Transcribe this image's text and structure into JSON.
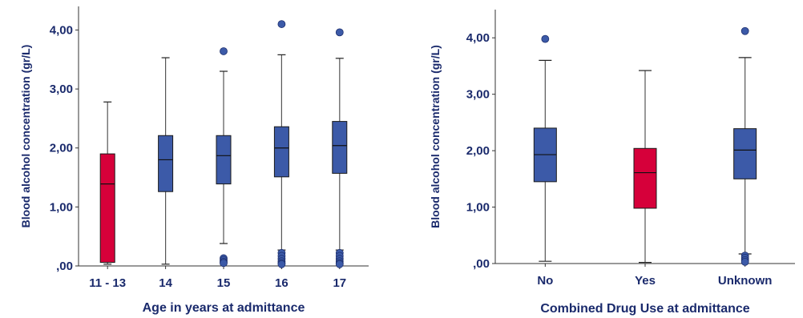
{
  "colors": {
    "default_box": "#3c5aa8",
    "highlight_box": "#d6003a",
    "outlier": "#3c5aa8",
    "axis": "#333333",
    "text": "#1a2a6c"
  },
  "chart_data": [
    {
      "type": "box",
      "title": "",
      "xlabel": "Age in years at admittance",
      "ylabel": "Blood alcohol concentration (gr/L)",
      "ylim": [
        0,
        4.4
      ],
      "yticks": [
        {
          "value": 0,
          "label": ",00"
        },
        {
          "value": 1,
          "label": "1,00"
        },
        {
          "value": 2,
          "label": "2,00"
        },
        {
          "value": 3,
          "label": "3,00"
        },
        {
          "value": 4,
          "label": "4,00"
        }
      ],
      "grid": false,
      "categories": [
        {
          "label": "11 - 13",
          "whisker_low": 0.03,
          "q1": 0.06,
          "median": 1.39,
          "q3": 1.9,
          "whisker_high": 2.78,
          "outliers": [],
          "highlight": true
        },
        {
          "label": "14",
          "whisker_low": 0.03,
          "q1": 1.26,
          "median": 1.8,
          "q3": 2.21,
          "whisker_high": 3.53,
          "outliers": [],
          "highlight": false
        },
        {
          "label": "15",
          "whisker_low": 0.38,
          "q1": 1.39,
          "median": 1.87,
          "q3": 2.21,
          "whisker_high": 3.3,
          "outliers": [
            3.64,
            0.13,
            0.1,
            0.07,
            0.05
          ],
          "highlight": false
        },
        {
          "label": "16",
          "whisker_low": 0.27,
          "q1": 1.51,
          "median": 2.0,
          "q3": 2.36,
          "whisker_high": 3.58,
          "outliers": [
            4.1,
            0.22,
            0.17,
            0.12,
            0.08,
            0.05,
            0.03
          ],
          "highlight": false
        },
        {
          "label": "17",
          "whisker_low": 0.27,
          "q1": 1.57,
          "median": 2.04,
          "q3": 2.45,
          "whisker_high": 3.52,
          "outliers": [
            3.96,
            0.22,
            0.17,
            0.12,
            0.08,
            0.05,
            0.03
          ],
          "highlight": false
        }
      ]
    },
    {
      "type": "box",
      "title": "",
      "xlabel": "Combined Drug Use at admittance",
      "ylabel": "Blood alcohol concentration (gr/L)",
      "ylim": [
        0,
        4.5
      ],
      "yticks": [
        {
          "value": 0,
          "label": ",00"
        },
        {
          "value": 1,
          "label": "1,00"
        },
        {
          "value": 2,
          "label": "2,00"
        },
        {
          "value": 3,
          "label": "3,00"
        },
        {
          "value": 4,
          "label": "4,00"
        }
      ],
      "grid": false,
      "categories": [
        {
          "label": "No",
          "whisker_low": 0.04,
          "q1": 1.45,
          "median": 1.93,
          "q3": 2.4,
          "whisker_high": 3.6,
          "outliers": [
            3.98
          ],
          "highlight": false
        },
        {
          "label": "Yes",
          "whisker_low": 0.02,
          "q1": 0.98,
          "median": 1.61,
          "q3": 2.04,
          "whisker_high": 3.42,
          "outliers": [],
          "highlight": true
        },
        {
          "label": "Unknown",
          "whisker_low": 0.17,
          "q1": 1.5,
          "median": 2.01,
          "q3": 2.39,
          "whisker_high": 3.65,
          "outliers": [
            4.12,
            0.14,
            0.1,
            0.06,
            0.03
          ],
          "highlight": false
        }
      ]
    }
  ]
}
